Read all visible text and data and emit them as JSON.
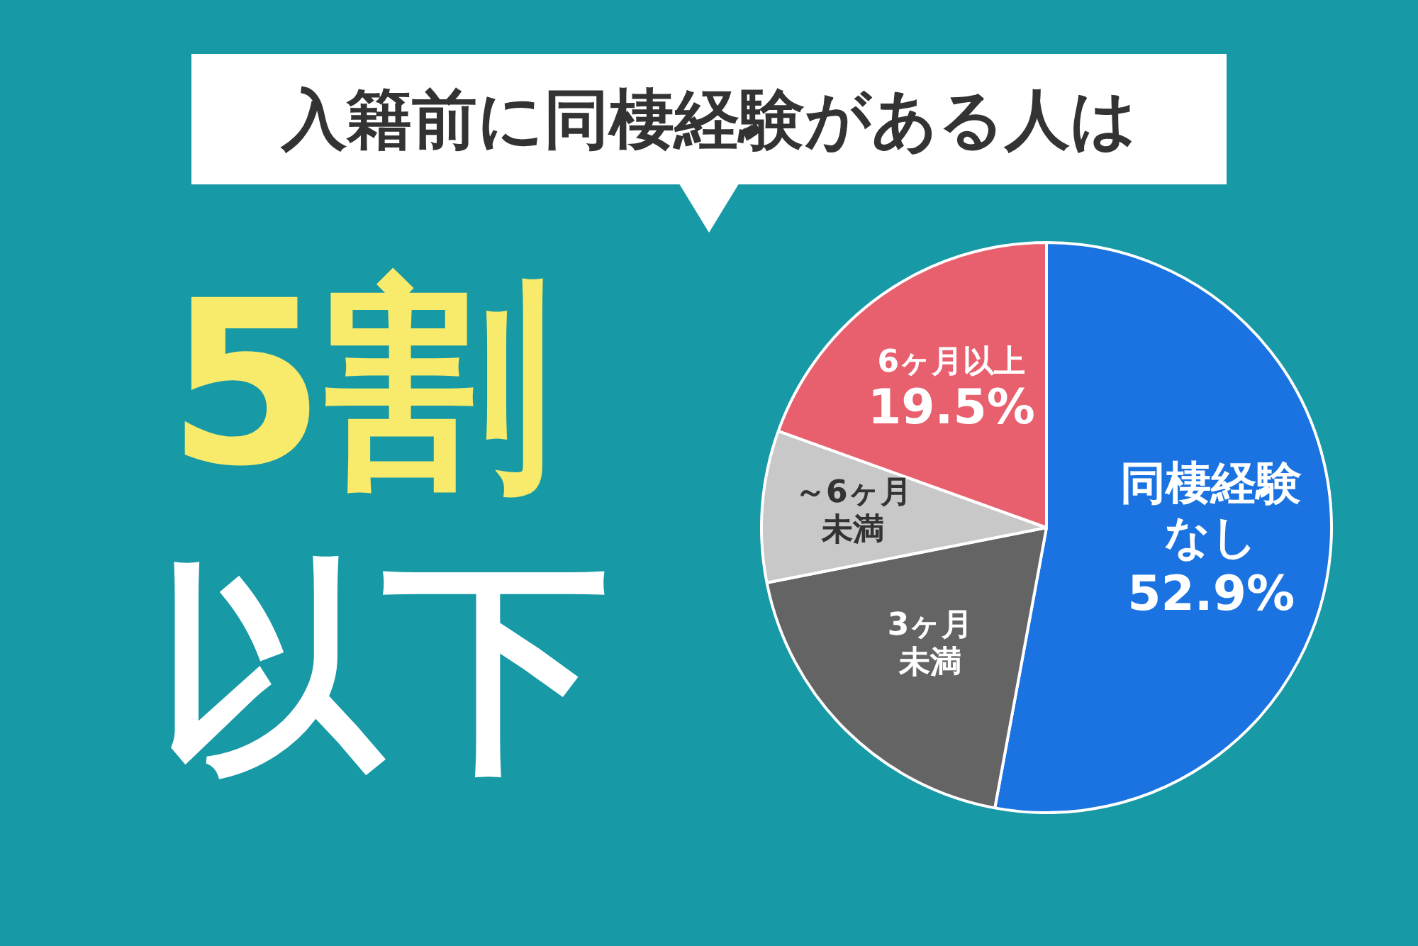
{
  "chart_data": {
    "type": "pie",
    "title": "入籍前に同棲経験がある人は",
    "categories": [
      "同棲経験なし",
      "3ヶ月未満",
      "～6ヶ月未満",
      "6ヶ月以上"
    ],
    "values": [
      52.9,
      19.0,
      8.6,
      19.5
    ],
    "colors": [
      "#1a73e0",
      "#646464",
      "#c8c8c8",
      "#e8606e"
    ],
    "value_labels": [
      "52.9%",
      null,
      null,
      "19.5%"
    ],
    "annotations": [
      "5割",
      "以下"
    ],
    "legend": false
  }
}
